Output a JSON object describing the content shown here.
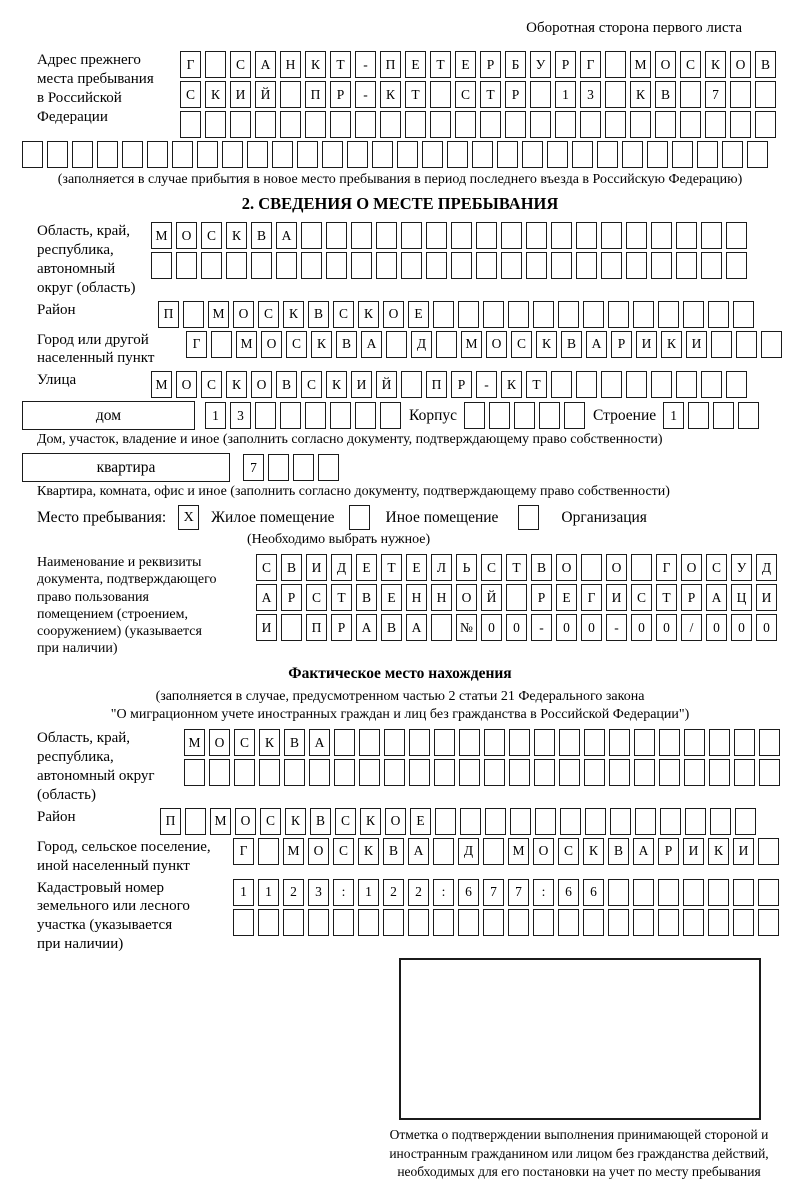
{
  "header": {
    "note": "Оборотная сторона первого листа"
  },
  "prev_address": {
    "label": [
      "Адрес прежнего",
      "места пребывания",
      "в Российской",
      "Федерации"
    ],
    "rows": {
      "r1": "Г САНКТ-ПЕТЕРБУРГ МОСКОВ",
      "r2": "СКИЙ ПР-КТ СТР 13 КВ 7",
      "r3": "",
      "r4": ""
    },
    "caption": "(заполняется в случае прибытия в новое место пребывания в период последнего въезда в Российскую Федерацию)"
  },
  "section2": {
    "title": "2. СВЕДЕНИЯ О МЕСТЕ ПРЕБЫВАНИЯ",
    "region": {
      "label": [
        "Область, край,",
        "республика,",
        "автономный",
        "округ (область)"
      ],
      "r1": "МОСКВА",
      "r2": ""
    },
    "district": {
      "label": "Район",
      "r": "П МОСКВСКОЕ"
    },
    "city": {
      "label": [
        "Город или другой",
        "населенный пункт"
      ],
      "r": "Г МОСКВА Д МОСКВАРИКИ"
    },
    "street": {
      "label": "Улица",
      "r": "МОСКОВСКИЙ ПР-КТ"
    },
    "house": {
      "box_label": "дом",
      "number": "13",
      "korpus_label": "Корпус",
      "korpus": "",
      "stroenie_label": "Строение",
      "stroenie": "1",
      "caption": "Дом, участок, владение и иное (заполнить согласно документу, подтверждающему право собственности)"
    },
    "apartment": {
      "box_label": "квартира",
      "number": "7",
      "caption": "Квартира, комната, офис и иное (заполнить согласно документу, подтверждающему право собственности)"
    },
    "stay_type": {
      "label": "Место пребывания:",
      "options": [
        {
          "label": "Жилое помещение",
          "mark": "X"
        },
        {
          "label": "Иное помещение",
          "mark": ""
        },
        {
          "label": "Организация",
          "mark": ""
        }
      ],
      "hint": "(Необходимо выбрать нужное)"
    },
    "doc": {
      "label": [
        "Наименование и реквизиты",
        "документа, подтверждающего",
        "право пользования",
        "помещением (строением,",
        "сооружением) (указывается",
        "при наличии)"
      ],
      "r1": "СВИДЕТЕЛЬСТВО О ГОСУД",
      "r2": "АРСТВЕННОЙ РЕГИСТРАЦИ",
      "r3": "И ПРАВА №00-00-00/000"
    }
  },
  "actual": {
    "title": "Фактическое место нахождения",
    "note": [
      "(заполняется в случае, предусмотренном частью 2 статьи 21 Федерального закона",
      "\"О миграционном учете иностранных граждан и лиц без гражданства в Российской Федерации\")"
    ],
    "region": {
      "label": [
        "Область, край,",
        "республика,",
        "автономный округ",
        "(область)"
      ],
      "r1": "МОСКВА",
      "r2": ""
    },
    "district": {
      "label": "Район",
      "r": "П МОСКВСКОЕ"
    },
    "city": {
      "label": [
        "Город, сельское поселение,",
        "иной населенный пункт"
      ],
      "r": "Г МОСКВА Д МОСКВАРИКИ"
    },
    "cadastre": {
      "label": [
        "Кадастровый номер",
        "земельного или лесного",
        "участка (указывается",
        "при наличии)"
      ],
      "r1": "1123:122:677:66",
      "r2": ""
    }
  },
  "stamp": {
    "caption": "Отметка о подтверждении выполнения принимающей стороной и иностранным гражданином или лицом без гражданства действий, необходимых для его постановки на учет по месту пребывания"
  }
}
